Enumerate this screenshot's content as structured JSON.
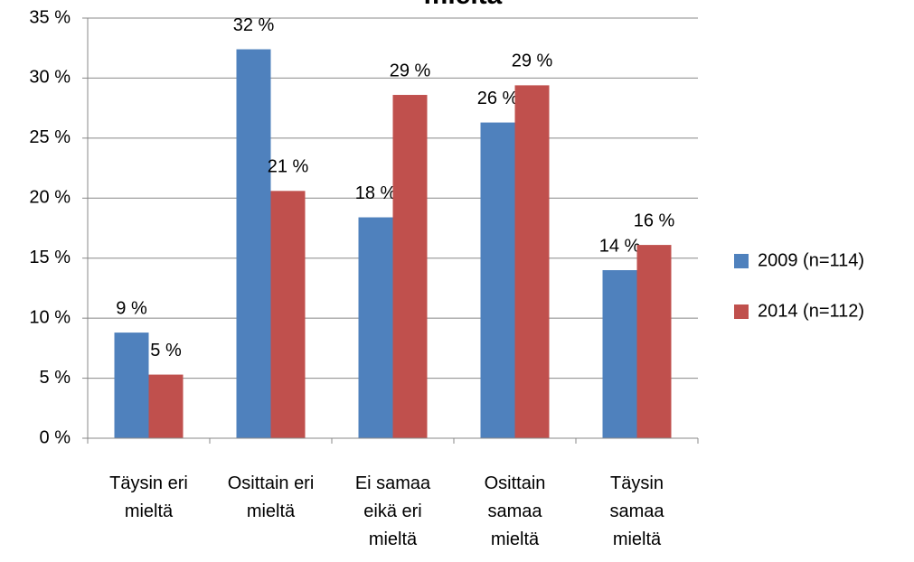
{
  "chart_data": {
    "type": "bar",
    "title": "mieltä",
    "categories": [
      "Täysin eri mieltä",
      "Osittain eri mieltä",
      "Ei samaa eikä eri mieltä",
      "Osittain samaa mieltä",
      "Täysin samaa mieltä"
    ],
    "series": [
      {
        "name": "2009 (n=114)",
        "color": "#4f81bd",
        "values": [
          8.8,
          32.4,
          18.4,
          26.3,
          14.0
        ],
        "value_labels": [
          "9 %",
          "32 %",
          "18 %",
          "26 %",
          "14 %"
        ]
      },
      {
        "name": "2014 (n=112)",
        "color": "#c0504d",
        "values": [
          5.3,
          20.6,
          28.6,
          29.4,
          16.1
        ],
        "value_labels": [
          "5 %",
          "21 %",
          "29 %",
          "29 %",
          "16 %"
        ]
      }
    ],
    "ylim": [
      0,
      35
    ],
    "yticks": [
      {
        "value": 0,
        "label": "0 %"
      },
      {
        "value": 5,
        "label": "5 %"
      },
      {
        "value": 10,
        "label": "10 %"
      },
      {
        "value": 15,
        "label": "15 %"
      },
      {
        "value": 20,
        "label": "20 %"
      },
      {
        "value": 25,
        "label": "25 %"
      },
      {
        "value": 30,
        "label": "30 %"
      },
      {
        "value": 35,
        "label": "35 %"
      }
    ],
    "grid": true,
    "legend": "right"
  }
}
